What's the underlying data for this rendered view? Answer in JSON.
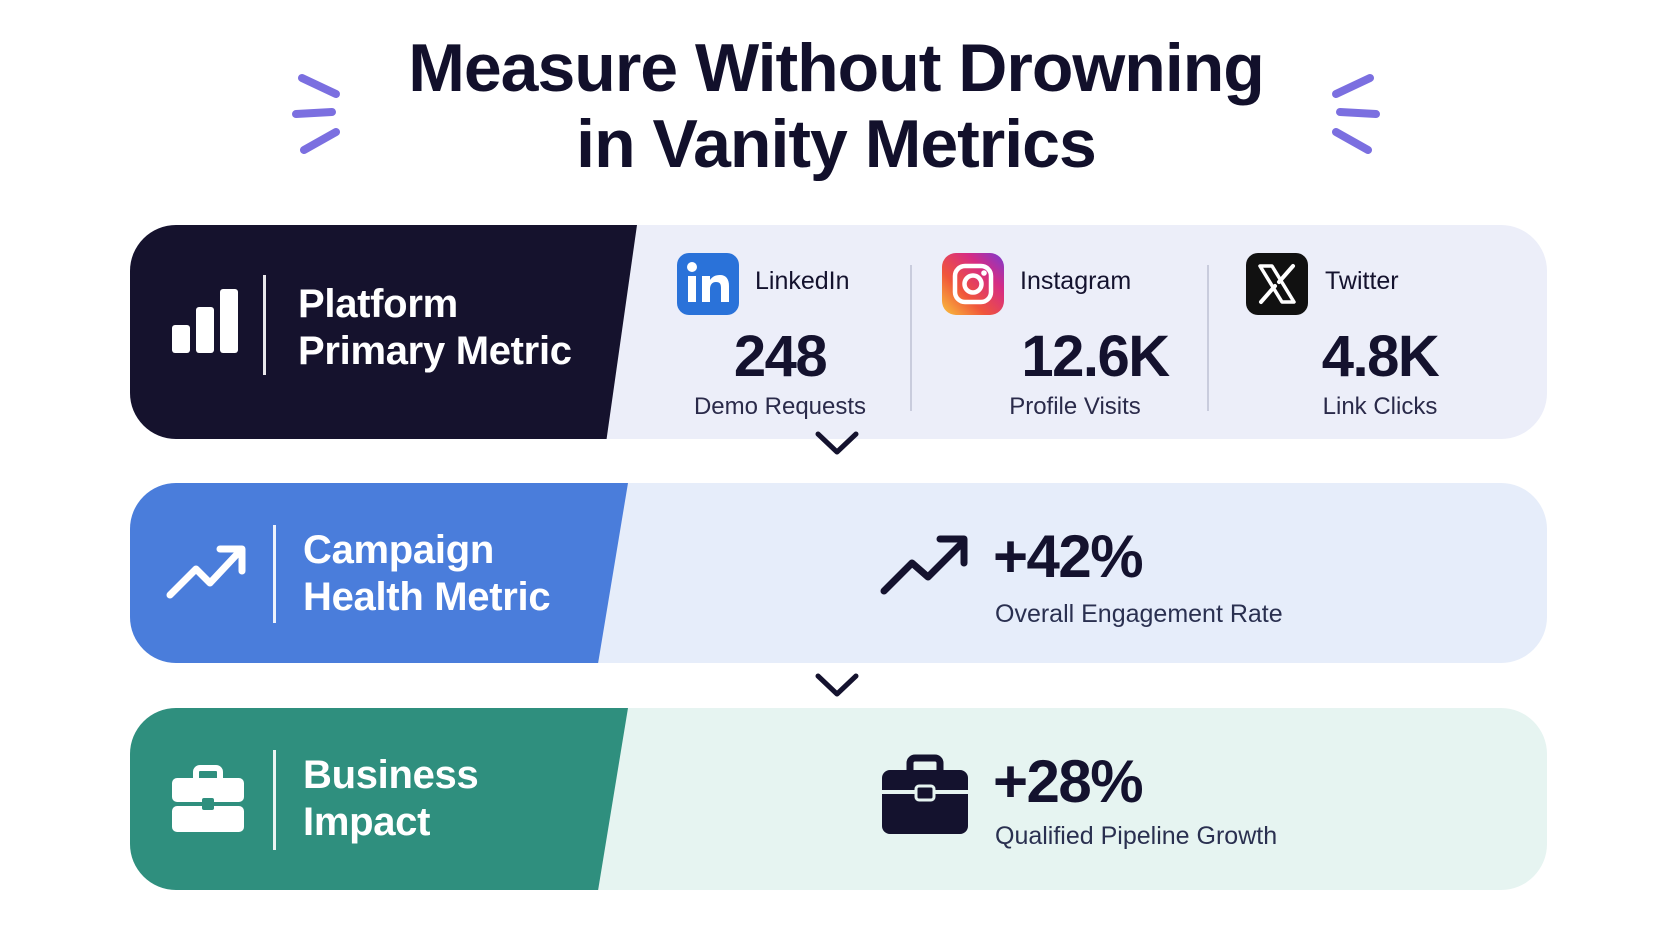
{
  "title": {
    "line1": "Measure Without Drowning",
    "line2": "in Vanity Metrics"
  },
  "rows": [
    {
      "label_line1": "Platform",
      "label_line2": "Primary Metric",
      "icon": "bar-chart-icon",
      "color": "#15122d",
      "platforms": [
        {
          "name": "LinkedIn",
          "icon": "linkedin-icon",
          "value": "248",
          "desc": "Demo Requests"
        },
        {
          "name": "Instagram",
          "icon": "instagram-icon",
          "value": "12.6K",
          "desc": "Profile Visits"
        },
        {
          "name": "Twitter",
          "icon": "x-icon",
          "value": "4.8K",
          "desc": "Link Clicks"
        }
      ]
    },
    {
      "label_line1": "Campaign",
      "label_line2": "Health Metric",
      "icon": "trending-up-icon",
      "color": "#4a7ddb",
      "value": "+42%",
      "desc": "Overall Engagement Rate"
    },
    {
      "label_line1": "Business",
      "label_line2": "Impact",
      "icon": "briefcase-icon",
      "color": "#2f8f7e",
      "value": "+28%",
      "desc": "Qualified Pipeline Growth"
    }
  ],
  "accent_color": "#7b6fe0"
}
